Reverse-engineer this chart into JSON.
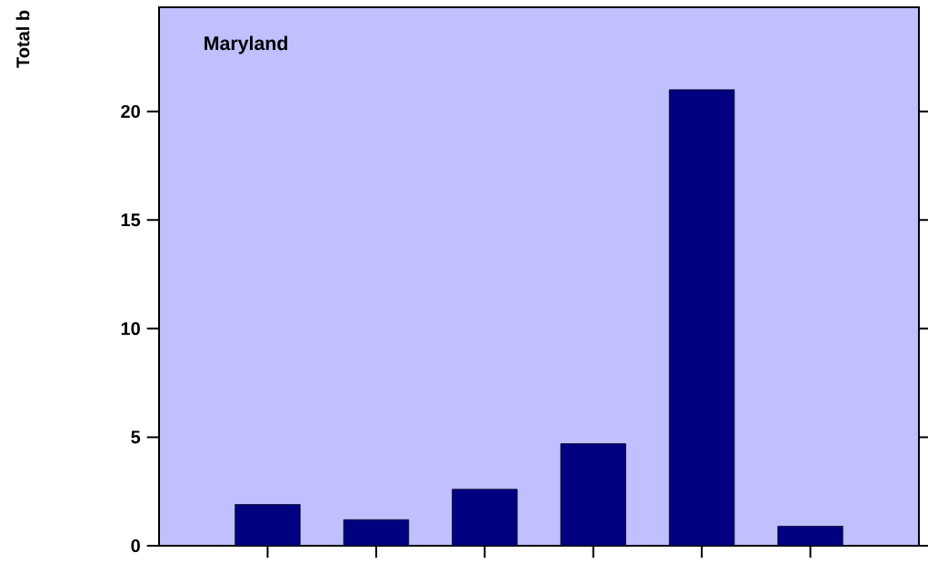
{
  "chart_data": {
    "type": "bar",
    "title": "Maryland",
    "annotations": [
      "Total b"
    ],
    "categories": [
      null,
      null,
      null,
      null,
      null,
      null
    ],
    "values": [
      1.9,
      1.2,
      2.6,
      4.7,
      21.0,
      0.9
    ],
    "color": "#000080",
    "ylim": [
      0,
      24.8
    ],
    "yticks": [
      0,
      5,
      10,
      15,
      20
    ],
    "tick_labels": "y",
    "grid": false
  }
}
